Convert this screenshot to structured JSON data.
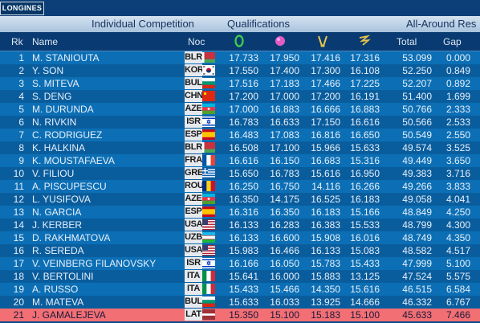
{
  "brand": "LONGINES",
  "title": {
    "competition": "Individual Competition",
    "phase": "Qualifications",
    "event": "All-Around Res"
  },
  "columns": {
    "rank": "Rk",
    "name": "Name",
    "noc": "Noc",
    "total": "Total",
    "gap": "Gap"
  },
  "apparatus_icons": [
    "hoop-icon",
    "ball-icon",
    "clubs-icon",
    "ribbon-icon"
  ],
  "colors": {
    "highlight_row": "#f26f74",
    "odd_row": "#0c6fb5",
    "even_row": "#0a5d9d"
  },
  "rows": [
    {
      "rank": "1",
      "name": "M. STANIOUTA",
      "noc": "BLR",
      "s1": "17.733",
      "s2": "17.950",
      "s3": "17.416",
      "s4": "17.316",
      "total": "53.099",
      "gap": "0.000"
    },
    {
      "rank": "2",
      "name": "Y. SON",
      "noc": "KOR",
      "s1": "17.550",
      "s2": "17.400",
      "s3": "17.300",
      "s4": "16.108",
      "total": "52.250",
      "gap": "0.849"
    },
    {
      "rank": "3",
      "name": "S. MITEVA",
      "noc": "BUL",
      "s1": "17.516",
      "s2": "17.183",
      "s3": "17.466",
      "s4": "17.225",
      "total": "52.207",
      "gap": "0.892"
    },
    {
      "rank": "4",
      "name": "S. DENG",
      "noc": "CHN",
      "s1": "17.200",
      "s2": "17.000",
      "s3": "17.200",
      "s4": "16.191",
      "total": "51.400",
      "gap": "1.699"
    },
    {
      "rank": "5",
      "name": "M. DURUNDA",
      "noc": "AZE",
      "s1": "17.000",
      "s2": "16.883",
      "s3": "16.666",
      "s4": "16.883",
      "total": "50.766",
      "gap": "2.333"
    },
    {
      "rank": "6",
      "name": "N. RIVKIN",
      "noc": "ISR",
      "s1": "16.783",
      "s2": "16.633",
      "s3": "17.150",
      "s4": "16.616",
      "total": "50.566",
      "gap": "2.533"
    },
    {
      "rank": "7",
      "name": "C. RODRIGUEZ",
      "noc": "ESP",
      "s1": "16.483",
      "s2": "17.083",
      "s3": "16.816",
      "s4": "16.650",
      "total": "50.549",
      "gap": "2.550"
    },
    {
      "rank": "8",
      "name": "K. HALKINA",
      "noc": "BLR",
      "s1": "16.508",
      "s2": "17.100",
      "s3": "15.966",
      "s4": "15.633",
      "total": "49.574",
      "gap": "3.525"
    },
    {
      "rank": "9",
      "name": "K. MOUSTAFAEVA",
      "noc": "FRA",
      "s1": "16.616",
      "s2": "16.150",
      "s3": "16.683",
      "s4": "15.316",
      "total": "49.449",
      "gap": "3.650"
    },
    {
      "rank": "10",
      "name": "V. FILIOU",
      "noc": "GRE",
      "s1": "15.650",
      "s2": "16.783",
      "s3": "15.616",
      "s4": "16.950",
      "total": "49.383",
      "gap": "3.716"
    },
    {
      "rank": "11",
      "name": "A. PISCUPESCU",
      "noc": "ROU",
      "s1": "16.250",
      "s2": "16.750",
      "s3": "14.116",
      "s4": "16.266",
      "total": "49.266",
      "gap": "3.833"
    },
    {
      "rank": "12",
      "name": "L. YUSIFOVA",
      "noc": "AZE",
      "s1": "16.350",
      "s2": "14.175",
      "s3": "16.525",
      "s4": "16.183",
      "total": "49.058",
      "gap": "4.041"
    },
    {
      "rank": "13",
      "name": "N. GARCIA",
      "noc": "ESP",
      "s1": "16.316",
      "s2": "16.350",
      "s3": "16.183",
      "s4": "15.166",
      "total": "48.849",
      "gap": "4.250"
    },
    {
      "rank": "14",
      "name": "J. KERBER",
      "noc": "USA",
      "s1": "16.133",
      "s2": "16.283",
      "s3": "16.383",
      "s4": "15.533",
      "total": "48.799",
      "gap": "4.300"
    },
    {
      "rank": "15",
      "name": "D. RAKHMATOVA",
      "noc": "UZB",
      "s1": "16.133",
      "s2": "16.600",
      "s3": "15.908",
      "s4": "16.016",
      "total": "48.749",
      "gap": "4.350"
    },
    {
      "rank": "16",
      "name": "R. SEREDA",
      "noc": "USA",
      "s1": "15.983",
      "s2": "16.466",
      "s3": "16.133",
      "s4": "15.083",
      "total": "48.582",
      "gap": "4.517"
    },
    {
      "rank": "17",
      "name": "V. VEINBERG FILANOVSKY",
      "noc": "ISR",
      "s1": "16.166",
      "s2": "16.050",
      "s3": "15.783",
      "s4": "15.433",
      "total": "47.999",
      "gap": "5.100"
    },
    {
      "rank": "18",
      "name": "V. BERTOLINI",
      "noc": "ITA",
      "s1": "15.641",
      "s2": "16.000",
      "s3": "15.883",
      "s4": "13.125",
      "total": "47.524",
      "gap": "5.575"
    },
    {
      "rank": "19",
      "name": "A. RUSSO",
      "noc": "ITA",
      "s1": "15.433",
      "s2": "15.466",
      "s3": "14.350",
      "s4": "15.616",
      "total": "46.515",
      "gap": "6.584"
    },
    {
      "rank": "20",
      "name": "M. MATEVA",
      "noc": "BUL",
      "s1": "15.633",
      "s2": "16.033",
      "s3": "13.925",
      "s4": "14.666",
      "total": "46.332",
      "gap": "6.767"
    },
    {
      "rank": "21",
      "name": "J. GAMALEJEVA",
      "noc": "LAT",
      "s1": "15.350",
      "s2": "15.100",
      "s3": "15.183",
      "s4": "15.100",
      "total": "45.633",
      "gap": "7.466"
    }
  ]
}
